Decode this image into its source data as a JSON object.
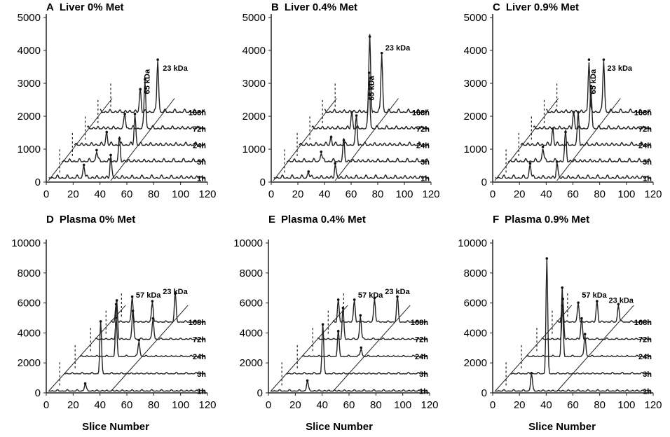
{
  "figure": {
    "x_axis_title": "Slice Number"
  },
  "chart_data": [
    {
      "id": "A",
      "type": "line",
      "title": "Liver 0% Met",
      "panel_letter": "A",
      "panel_text": "Liver 0% Met",
      "xlabel": "Slice Number",
      "ylabel": "",
      "xlim": [
        0,
        120
      ],
      "ylim": [
        0,
        5000
      ],
      "x_ticks": [
        0,
        20,
        40,
        60,
        80,
        100,
        120
      ],
      "y_ticks": [
        0,
        1000,
        2000,
        3000,
        4000,
        5000
      ],
      "offset_per_series": {
        "x": 9.5,
        "y": 500
      },
      "x_range_per_series": [
        0,
        120
      ],
      "series": [
        {
          "name": "1h",
          "peaks": [
            {
              "x": 28,
              "y": 400
            },
            {
              "x": 48,
              "y": 700
            }
          ]
        },
        {
          "name": "3h",
          "peaks": [
            {
              "x": 28,
              "y": 350
            },
            {
              "x": 45,
              "y": 700
            }
          ]
        },
        {
          "name": "24h",
          "peaks": [
            {
              "x": 26,
              "y": 400
            },
            {
              "x": 47,
              "y": 950
            }
          ]
        },
        {
          "name": "72h",
          "peaks": [
            {
              "x": 30,
              "y": 450
            },
            {
              "x": 45,
              "y": 1500
            }
          ]
        },
        {
          "name": "168h",
          "peaks": [
            {
              "x": 32,
              "y": 700
            },
            {
              "x": 45,
              "y": 1600
            }
          ]
        }
      ],
      "peak_labels": [
        {
          "text": "65 kDa",
          "x": 77,
          "y": 3050,
          "rotate": true
        },
        {
          "text": "23 kDa",
          "x": 96,
          "y": 3380,
          "rotate": false
        }
      ]
    },
    {
      "id": "B",
      "type": "line",
      "title": "Liver 0.4% Met",
      "panel_letter": "B",
      "panel_text": "Liver 0.4% Met",
      "xlabel": "Slice Number",
      "ylabel": "",
      "xlim": [
        0,
        120
      ],
      "ylim": [
        0,
        5000
      ],
      "x_ticks": [
        0,
        20,
        40,
        60,
        80,
        100,
        120
      ],
      "y_ticks": [
        0,
        1000,
        2000,
        3000,
        4000,
        5000
      ],
      "offset_per_series": {
        "x": 9.5,
        "y": 500
      },
      "x_range_per_series": [
        0,
        120
      ],
      "series": [
        {
          "name": "1h",
          "peaks": [
            {
              "x": 28,
              "y": 200
            },
            {
              "x": 48,
              "y": 450
            }
          ]
        },
        {
          "name": "3h",
          "peaks": [
            {
              "x": 28,
              "y": 300
            },
            {
              "x": 45,
              "y": 650
            }
          ]
        },
        {
          "name": "24h",
          "peaks": [
            {
              "x": 26,
              "y": 250
            },
            {
              "x": 45,
              "y": 900
            }
          ]
        },
        {
          "name": "72h",
          "peaks": [
            {
              "x": 32,
              "y": 500
            },
            {
              "x": 45,
              "y": 1700
            }
          ]
        },
        {
          "name": "168h",
          "peaks": [
            {
              "x": 36,
              "y": 2300
            },
            {
              "x": 45,
              "y": 1800
            }
          ]
        }
      ],
      "peak_labels": [
        {
          "text": "65 kDa",
          "x": 77,
          "y": 2850,
          "rotate": true
        },
        {
          "text": "23 kDa",
          "x": 95,
          "y": 4000,
          "rotate": false
        }
      ]
    },
    {
      "id": "C",
      "type": "line",
      "title": "Liver 0.9% Met",
      "panel_letter": "C",
      "panel_text": "Liver 0.9% Met",
      "xlabel": "Slice Number",
      "ylabel": "",
      "xlim": [
        0,
        120
      ],
      "ylim": [
        0,
        5000
      ],
      "x_ticks": [
        0,
        20,
        40,
        60,
        80,
        100,
        120
      ],
      "y_ticks": [
        0,
        1000,
        2000,
        3000,
        4000,
        5000
      ],
      "offset_per_series": {
        "x": 9.5,
        "y": 500
      },
      "x_range_per_series": [
        0,
        120
      ],
      "series": [
        {
          "name": "1h",
          "peaks": [
            {
              "x": 28,
              "y": 450
            },
            {
              "x": 48,
              "y": 500
            }
          ]
        },
        {
          "name": "3h",
          "peaks": [
            {
              "x": 28,
              "y": 450
            },
            {
              "x": 45,
              "y": 900
            }
          ]
        },
        {
          "name": "24h",
          "peaks": [
            {
              "x": 26,
              "y": 500
            },
            {
              "x": 45,
              "y": 1000
            }
          ]
        },
        {
          "name": "72h",
          "peaks": [
            {
              "x": 32,
              "y": 500
            },
            {
              "x": 45,
              "y": 1300
            }
          ]
        },
        {
          "name": "168h",
          "peaks": [
            {
              "x": 34,
              "y": 1600
            },
            {
              "x": 45,
              "y": 1600
            }
          ]
        }
      ],
      "peak_labels": [
        {
          "text": "65 kDa",
          "x": 77,
          "y": 3050,
          "rotate": true
        },
        {
          "text": "23 kDa",
          "x": 95,
          "y": 3380,
          "rotate": false
        }
      ]
    },
    {
      "id": "D",
      "type": "line",
      "title": "Plasma 0% Met",
      "panel_letter": "D",
      "panel_text": "Plasma 0% Met",
      "xlabel": "Slice Number",
      "ylabel": "",
      "xlim": [
        0,
        120
      ],
      "ylim": [
        0,
        10000
      ],
      "x_ticks": [
        0,
        20,
        40,
        60,
        80,
        100,
        120
      ],
      "y_ticks": [
        0,
        2000,
        4000,
        6000,
        8000,
        10000
      ],
      "offset_per_series": {
        "x": 11.5,
        "y": 1150
      },
      "x_range_per_series": [
        0,
        120
      ],
      "series": [
        {
          "name": "1h",
          "peaks": [
            {
              "x": 29,
              "y": 500
            }
          ]
        },
        {
          "name": "3h",
          "peaks": [
            {
              "x": 29,
              "y": 3500
            }
          ]
        },
        {
          "name": "24h",
          "peaks": [
            {
              "x": 29,
              "y": 2600
            },
            {
              "x": 46,
              "y": 1100
            }
          ]
        },
        {
          "name": "72h",
          "peaks": [
            {
              "x": 18,
              "y": 2600
            },
            {
              "x": 30,
              "y": 1900
            },
            {
              "x": 45,
              "y": 1400
            }
          ]
        },
        {
          "name": "168h",
          "peaks": [
            {
              "x": 6,
              "y": 1200
            },
            {
              "x": 18,
              "y": 1700
            },
            {
              "x": 33,
              "y": 1400
            },
            {
              "x": 50,
              "y": 1900
            }
          ]
        }
      ],
      "peak_labels": [
        {
          "text": "57 kDa",
          "x": 76,
          "y": 6350,
          "rotate": false
        },
        {
          "text": "23 kDa",
          "x": 96,
          "y": 6600,
          "rotate": false
        }
      ]
    },
    {
      "id": "E",
      "type": "line",
      "title": "Plasma 0.4% Met",
      "panel_letter": "E",
      "panel_text": "Plasma 0.4% Met",
      "xlabel": "Slice Number",
      "ylabel": "",
      "xlim": [
        0,
        120
      ],
      "ylim": [
        0,
        10000
      ],
      "x_ticks": [
        0,
        20,
        40,
        60,
        80,
        100,
        120
      ],
      "y_ticks": [
        0,
        2000,
        4000,
        6000,
        8000,
        10000
      ],
      "offset_per_series": {
        "x": 11.5,
        "y": 1150
      },
      "x_range_per_series": [
        0,
        120
      ],
      "series": [
        {
          "name": "1h",
          "peaks": [
            {
              "x": 29,
              "y": 700
            }
          ]
        },
        {
          "name": "3h",
          "peaks": [
            {
              "x": 29,
              "y": 3300
            }
          ]
        },
        {
          "name": "24h",
          "peaks": [
            {
              "x": 29,
              "y": 1700
            },
            {
              "x": 46,
              "y": 600
            }
          ]
        },
        {
          "name": "72h",
          "peaks": [
            {
              "x": 21,
              "y": 2100
            },
            {
              "x": 34,
              "y": 1600
            }
          ]
        },
        {
          "name": "168h",
          "peaks": [
            {
              "x": 6,
              "y": 1500
            },
            {
              "x": 18,
              "y": 1500
            },
            {
              "x": 33,
              "y": 1600
            },
            {
              "x": 50,
              "y": 1700
            }
          ]
        }
      ],
      "peak_labels": [
        {
          "text": "57 kDa",
          "x": 76,
          "y": 6350,
          "rotate": false
        },
        {
          "text": "23 kDa",
          "x": 96,
          "y": 6600,
          "rotate": false
        }
      ]
    },
    {
      "id": "F",
      "type": "line",
      "title": "Plasma 0.9% Met",
      "panel_letter": "F",
      "panel_text": "Plasma 0.9% Met",
      "xlabel": "Slice Number",
      "ylabel": "",
      "xlim": [
        0,
        120
      ],
      "ylim": [
        0,
        10000
      ],
      "x_ticks": [
        0,
        20,
        40,
        60,
        80,
        100,
        120
      ],
      "y_ticks": [
        0,
        2000,
        4000,
        6000,
        8000,
        10000
      ],
      "offset_per_series": {
        "x": 11.5,
        "y": 1150
      },
      "x_range_per_series": [
        0,
        120
      ],
      "series": [
        {
          "name": "1h",
          "peaks": [
            {
              "x": 29,
              "y": 1200
            }
          ]
        },
        {
          "name": "3h",
          "peaks": [
            {
              "x": 29,
              "y": 7700
            }
          ]
        },
        {
          "name": "24h",
          "peaks": [
            {
              "x": 29,
              "y": 4600
            },
            {
              "x": 46,
              "y": 1500
            }
          ]
        },
        {
          "name": "72h",
          "peaks": [
            {
              "x": 18,
              "y": 2700
            },
            {
              "x": 32,
              "y": 1400
            }
          ]
        },
        {
          "name": "168h",
          "peaks": [
            {
              "x": 6,
              "y": 1100
            },
            {
              "x": 18,
              "y": 1300
            },
            {
              "x": 32,
              "y": 1400
            },
            {
              "x": 48,
              "y": 1200
            }
          ]
        }
      ],
      "peak_labels": [
        {
          "text": "57 kDa",
          "x": 76,
          "y": 6350,
          "rotate": false
        },
        {
          "text": "23 kDa",
          "x": 96,
          "y": 6000,
          "rotate": false
        }
      ]
    }
  ]
}
